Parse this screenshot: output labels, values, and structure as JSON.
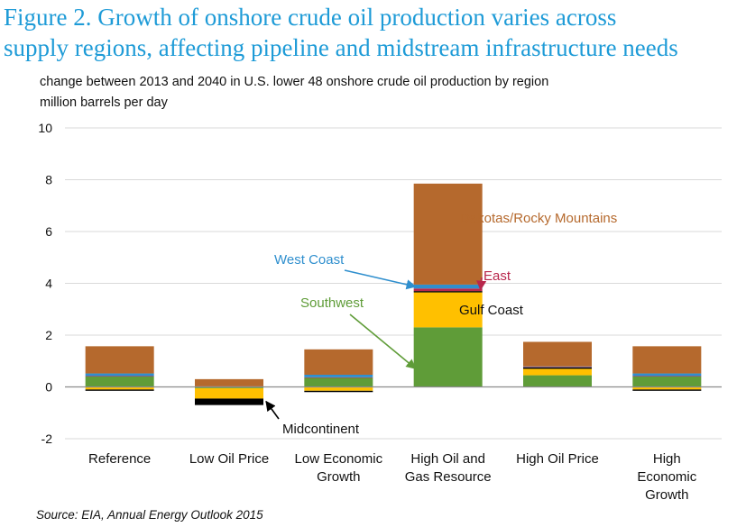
{
  "title_line1": "Figure 2. Growth of onshore crude oil production varies across",
  "title_line2": "supply regions, affecting pipeline and midstream infrastructure needs",
  "subtitle_line1": "change between  2013 and 2040 in U.S. lower  48 onshore  crude oil production  by region",
  "subtitle_line2": "million  barrels per day",
  "source": "Source:  EIA, Annual Energy Outlook 2015",
  "colors": {
    "Southwest": "#5f9c38",
    "Gulf Coast": "#ffc000",
    "Midcontinent": "#000000",
    "East": "#b8274c",
    "West Coast": "#2f8fce",
    "Dakotas/Rocky Mountains": "#b5692d"
  },
  "chart_data": {
    "type": "bar",
    "stacked": true,
    "ylim": [
      -2,
      10
    ],
    "yticks": [
      -2,
      0,
      2,
      4,
      6,
      8,
      10
    ],
    "gridlines": true,
    "categories": [
      [
        "Reference"
      ],
      [
        "Low Oil Price"
      ],
      [
        "Low Economic",
        "Growth"
      ],
      [
        "High Oil and",
        "Gas Resource"
      ],
      [
        "High Oil Price"
      ],
      [
        "High",
        "Economic",
        "Growth"
      ]
    ],
    "series": [
      {
        "name": "Southwest",
        "values": [
          0.4,
          -0.05,
          0.35,
          2.3,
          0.45,
          0.4
        ]
      },
      {
        "name": "Gulf Coast",
        "values": [
          -0.1,
          -0.4,
          -0.15,
          1.35,
          0.25,
          -0.1
        ]
      },
      {
        "name": "Midcontinent",
        "values": [
          -0.05,
          -0.25,
          -0.05,
          0.05,
          0.05,
          -0.05
        ]
      },
      {
        "name": "East",
        "values": [
          0.02,
          0.0,
          0.02,
          0.1,
          0.02,
          0.02
        ]
      },
      {
        "name": "West Coast",
        "values": [
          0.1,
          0.02,
          0.1,
          0.15,
          0.02,
          0.1
        ]
      },
      {
        "name": "Dakotas/Rocky Mountains",
        "values": [
          1.05,
          0.28,
          0.98,
          3.9,
          0.95,
          1.05
        ]
      }
    ],
    "annotations": [
      {
        "text": "Dakotas/Rocky  Mountains",
        "series": "Dakotas/Rocky Mountains"
      },
      {
        "text": "West Coast",
        "series": "West Coast"
      },
      {
        "text": "East",
        "series": "East"
      },
      {
        "text": "Southwest",
        "series": "Southwest"
      },
      {
        "text": "Gulf  Coast",
        "series": "Gulf Coast"
      },
      {
        "text": "Midcontinent",
        "series": "Midcontinent"
      }
    ]
  }
}
